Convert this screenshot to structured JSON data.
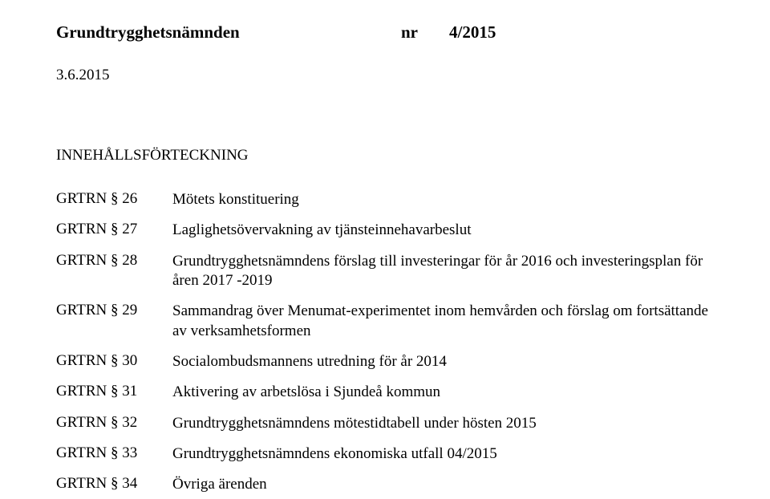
{
  "header": {
    "title": "Grundtrygghetsnämnden",
    "nr_label": "nr",
    "number": "4/2015"
  },
  "date": "3.6.2015",
  "toc_title": "INNEHÅLLSFÖRTECKNING",
  "toc": [
    {
      "label": "GRTRN § 26",
      "text": "Mötets  konstituering"
    },
    {
      "label": "GRTRN § 27",
      "text": "Laglighetsövervakning av tjänsteinnehavarbeslut"
    },
    {
      "label": "GRTRN § 28",
      "text": "Grundtrygghetsnämndens förslag till investeringar för år 2016 och investeringsplan för åren 2017 -2019"
    },
    {
      "label": "GRTRN § 29",
      "text": "Sammandrag över Menumat-experimentet inom hemvården och förslag om fortsättande av verksamhetsformen"
    },
    {
      "label": "GRTRN § 30",
      "text": "Socialombudsmannens utredning för år 2014"
    },
    {
      "label": "GRTRN § 31",
      "text": "Aktivering av arbetslösa i Sjundeå kommun"
    },
    {
      "label": "GRTRN § 32",
      "text": "Grundtrygghetsnämndens mötestidtabell under hösten 2015"
    },
    {
      "label": "GRTRN § 33",
      "text": "Grundtrygghetsnämndens ekonomiska utfall 04/2015"
    },
    {
      "label": "GRTRN § 34",
      "text": "Övriga ärenden"
    }
  ]
}
